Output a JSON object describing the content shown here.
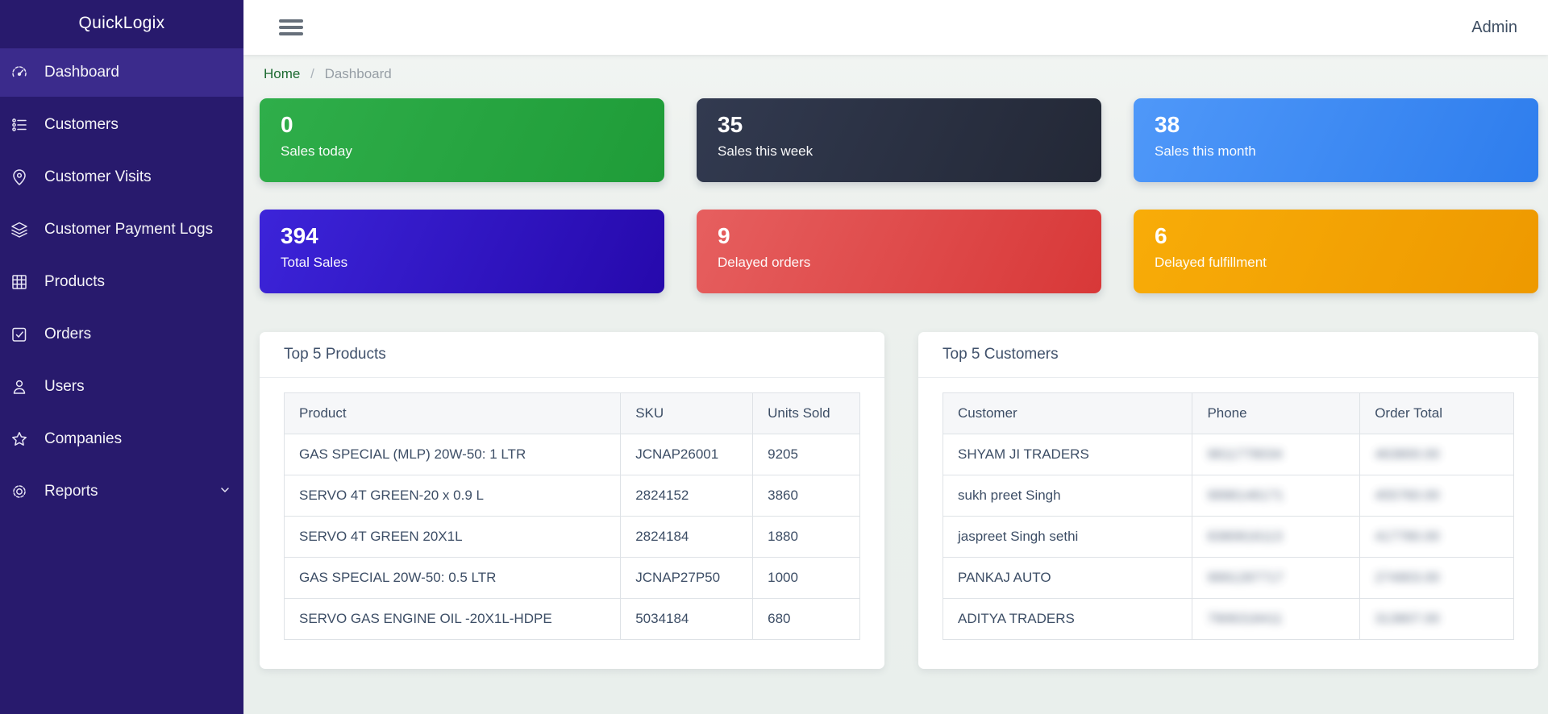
{
  "brand": "QuickLogix",
  "sidebar": {
    "items": [
      {
        "label": "Dashboard",
        "icon": "gauge-icon",
        "active": true
      },
      {
        "label": "Customers",
        "icon": "list-icon",
        "active": false
      },
      {
        "label": "Customer Visits",
        "icon": "map-pin-icon",
        "active": false
      },
      {
        "label": "Customer Payment Logs",
        "icon": "layers-icon",
        "active": false
      },
      {
        "label": "Products",
        "icon": "grid-icon",
        "active": false
      },
      {
        "label": "Orders",
        "icon": "check-square-icon",
        "active": false
      },
      {
        "label": "Users",
        "icon": "user-icon",
        "active": false
      },
      {
        "label": "Companies",
        "icon": "star-icon",
        "active": false
      },
      {
        "label": "Reports",
        "icon": "gear-icon",
        "active": false,
        "has_submenu": true
      }
    ]
  },
  "header": {
    "menu_icon": "hamburger-icon",
    "admin_label": "Admin"
  },
  "breadcrumb": {
    "home": "Home",
    "separator": "/",
    "current": "Dashboard"
  },
  "stat_cards": [
    {
      "value": "0",
      "label": "Sales today",
      "gradient": [
        "#2fae4a",
        "#1f9c38"
      ]
    },
    {
      "value": "35",
      "label": "Sales this week",
      "gradient": [
        "#323a50",
        "#232836"
      ]
    },
    {
      "value": "38",
      "label": "Sales this month",
      "gradient": [
        "#4f98f9",
        "#2e7ded"
      ]
    },
    {
      "value": "394",
      "label": "Total Sales",
      "gradient": [
        "#3c24d9",
        "#2609ac"
      ]
    },
    {
      "value": "9",
      "label": "Delayed orders",
      "gradient": [
        "#e65f5f",
        "#d83838"
      ]
    },
    {
      "value": "6",
      "label": "Delayed fulfillment",
      "gradient": [
        "#f8ac08",
        "#ee9900"
      ]
    }
  ],
  "products_panel": {
    "title": "Top 5 Products",
    "columns": [
      "Product",
      "SKU",
      "Units Sold"
    ],
    "rows": [
      [
        "GAS SPECIAL (MLP) 20W-50: 1 LTR",
        "JCNAP26001",
        "9205"
      ],
      [
        "SERVO 4T GREEN-20 x 0.9 L",
        "2824152",
        "3860"
      ],
      [
        "SERVO 4T GREEN 20X1L",
        "2824184",
        "1880"
      ],
      [
        "GAS SPECIAL 20W-50: 0.5 LTR",
        "JCNAP27P50",
        "1000"
      ],
      [
        "SERVO GAS ENGINE OIL -20X1L-HDPE",
        "5034184",
        "680"
      ]
    ],
    "blur_cols": []
  },
  "customers_panel": {
    "title": "Top 5 Customers",
    "columns": [
      "Customer",
      "Phone",
      "Order Total"
    ],
    "note": "phone and order total values are blurred/redacted in the screenshot",
    "rows": [
      [
        "SHYAM JI TRADERS",
        "9811778034",
        "463800.00"
      ],
      [
        "sukh preet Singh",
        "9996146171",
        "455760.00"
      ],
      [
        "jaspreet Singh sethi",
        "8380816113",
        "417780.00"
      ],
      [
        "PANKAJ AUTO",
        "9991287717",
        "274903.00"
      ],
      [
        "ADITYA TRADERS",
        "7906318411",
        "313807.00"
      ]
    ],
    "blur_cols": [
      1,
      2
    ]
  }
}
